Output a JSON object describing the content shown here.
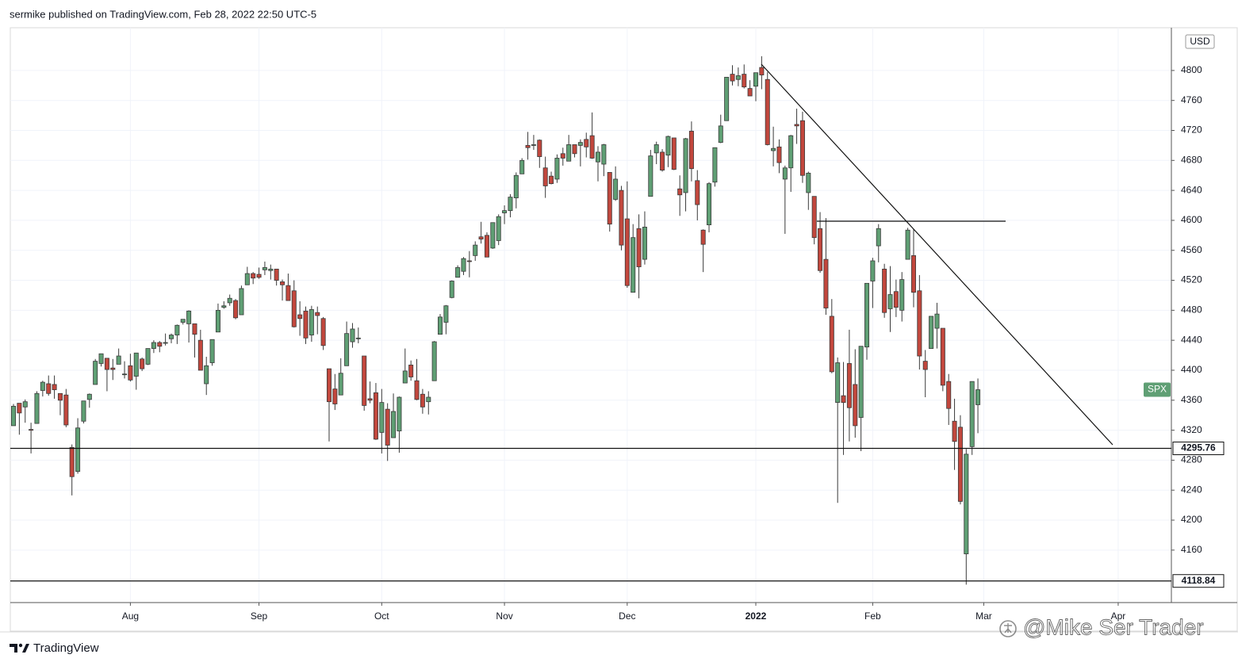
{
  "header": "sermike published on TradingView.com, Feb 28, 2022 22:50 UTC-5",
  "footer_brand": "TradingView",
  "watermark": "@Mike Ser Trader",
  "chart_data": {
    "type": "candlestick",
    "symbol": "SPX",
    "currency": "USD",
    "up_color": "#5f9f74",
    "down_color": "#c2473d",
    "grid": true,
    "ylim": [
      4090,
      4857
    ],
    "yticks": [
      4160,
      4200,
      4240,
      4280,
      4320,
      4360,
      4400,
      4440,
      4480,
      4520,
      4560,
      4600,
      4640,
      4680,
      4720,
      4760,
      4800
    ],
    "levels": [
      4295.76,
      4118.84
    ],
    "categories": [
      null,
      null,
      null,
      null,
      null,
      null,
      null,
      null,
      null,
      null,
      null,
      null,
      null,
      null,
      null,
      null,
      null,
      null,
      null,
      null,
      "Aug",
      null,
      null,
      null,
      null,
      null,
      null,
      null,
      null,
      null,
      null,
      null,
      null,
      null,
      null,
      null,
      null,
      null,
      null,
      null,
      null,
      null,
      "Sep",
      null,
      null,
      null,
      null,
      null,
      null,
      null,
      null,
      null,
      null,
      null,
      null,
      null,
      null,
      null,
      null,
      null,
      null,
      null,
      null,
      "Oct",
      null,
      null,
      null,
      null,
      null,
      null,
      null,
      null,
      null,
      null,
      null,
      null,
      null,
      null,
      null,
      null,
      null,
      null,
      null,
      null,
      "Nov",
      null,
      null,
      null,
      null,
      null,
      null,
      null,
      null,
      null,
      null,
      null,
      null,
      null,
      null,
      null,
      null,
      null,
      null,
      null,
      null,
      "Dec",
      null,
      null,
      null,
      null,
      null,
      null,
      null,
      null,
      null,
      null,
      null,
      null,
      null,
      null,
      null,
      null,
      null,
      null,
      null,
      null,
      null,
      "2022",
      null,
      null,
      null,
      null,
      null,
      null,
      null,
      null,
      null,
      null,
      null,
      null,
      null,
      null,
      null,
      null,
      null,
      null,
      null,
      "Feb",
      null,
      null,
      null,
      null,
      null,
      null,
      null,
      null,
      null,
      null,
      null,
      null,
      null,
      null,
      null,
      null,
      null,
      null,
      "Mar",
      null,
      null,
      null,
      null,
      null,
      null,
      null,
      null,
      null,
      null,
      null,
      null,
      null,
      null,
      null,
      null,
      null,
      null,
      null,
      null,
      null,
      null,
      "Apr"
    ],
    "ohlc": [
      [
        4326,
        4355,
        4326,
        4352
      ],
      [
        4356,
        4356,
        4314,
        4343
      ],
      [
        4351,
        4361,
        4330,
        4358
      ],
      [
        4321,
        4330,
        4289,
        4320
      ],
      [
        4329,
        4372,
        4329,
        4369
      ],
      [
        4373,
        4386,
        4365,
        4384
      ],
      [
        4382,
        4393,
        4366,
        4369
      ],
      [
        4381,
        4393,
        4362,
        4374
      ],
      [
        4369,
        4369,
        4340,
        4360
      ],
      [
        4367,
        4375,
        4324,
        4327
      ],
      [
        4297,
        4301,
        4233,
        4258
      ],
      [
        4265,
        4336,
        4262,
        4323
      ],
      [
        4332,
        4359,
        4329,
        4359
      ],
      [
        4361,
        4369,
        4350,
        4368
      ],
      [
        4381,
        4415,
        4381,
        4412
      ],
      [
        4409,
        4422,
        4405,
        4422
      ],
      [
        4416,
        4416,
        4372,
        4401
      ],
      [
        4403,
        4415,
        4387,
        4401
      ],
      [
        4408,
        4429,
        4408,
        4419
      ],
      [
        4395,
        4412,
        4389,
        4395
      ],
      [
        4406,
        4422,
        4385,
        4387
      ],
      [
        4392,
        4423,
        4374,
        4423
      ],
      [
        4415,
        4417,
        4399,
        4402
      ],
      [
        4408,
        4429,
        4407,
        4429
      ],
      [
        4429,
        4440,
        4423,
        4437
      ],
      [
        4437,
        4439,
        4424,
        4432
      ],
      [
        4436,
        4449,
        4433,
        4437
      ],
      [
        4442,
        4449,
        4436,
        4447
      ],
      [
        4447,
        4461,
        4435,
        4460
      ],
      [
        4464,
        4468,
        4461,
        4468
      ],
      [
        4462,
        4480,
        4437,
        4479
      ],
      [
        4462,
        4462,
        4417,
        4448
      ],
      [
        4440,
        4454,
        4400,
        4400
      ],
      [
        4382,
        4418,
        4367,
        4406
      ],
      [
        4410,
        4441,
        4406,
        4441
      ],
      [
        4451,
        4489,
        4451,
        4480
      ],
      [
        4484,
        4492,
        4482,
        4486
      ],
      [
        4490,
        4501,
        4486,
        4496
      ],
      [
        4493,
        4495,
        4468,
        4470
      ],
      [
        4474,
        4513,
        4474,
        4509
      ],
      [
        4514,
        4538,
        4514,
        4529
      ],
      [
        4529,
        4531,
        4515,
        4523
      ],
      [
        4528,
        4537,
        4522,
        4524
      ],
      [
        4534,
        4545,
        4527,
        4537
      ],
      [
        4533,
        4541,
        4521,
        4535
      ],
      [
        4535,
        4535,
        4513,
        4520
      ],
      [
        4518,
        4521,
        4493,
        4514
      ],
      [
        4513,
        4529,
        4493,
        4493
      ],
      [
        4506,
        4520,
        4457,
        4458
      ],
      [
        4474,
        4492,
        4446,
        4469
      ],
      [
        4479,
        4485,
        4435,
        4443
      ],
      [
        4447,
        4486,
        4438,
        4481
      ],
      [
        4477,
        4485,
        4448,
        4473
      ],
      [
        4469,
        4471,
        4427,
        4433
      ],
      [
        4402,
        4402,
        4305,
        4358
      ],
      [
        4375,
        4395,
        4347,
        4355
      ],
      [
        4367,
        4416,
        4367,
        4396
      ],
      [
        4406,
        4465,
        4406,
        4449
      ],
      [
        4438,
        4463,
        4430,
        4455
      ],
      [
        4442,
        4457,
        4436,
        4443
      ],
      [
        4419,
        4419,
        4346,
        4353
      ],
      [
        4362,
        4385,
        4356,
        4360
      ],
      [
        4370,
        4383,
        4307,
        4308
      ],
      [
        4317,
        4375,
        4289,
        4357
      ],
      [
        4348,
        4356,
        4279,
        4300
      ],
      [
        4310,
        4369,
        4310,
        4345
      ],
      [
        4319,
        4365,
        4290,
        4364
      ],
      [
        4383,
        4429,
        4383,
        4399
      ],
      [
        4407,
        4413,
        4386,
        4391
      ],
      [
        4386,
        4415,
        4360,
        4361
      ],
      [
        4368,
        4375,
        4342,
        4351
      ],
      [
        4358,
        4372,
        4341,
        4364
      ],
      [
        4386,
        4439,
        4386,
        4438
      ],
      [
        4448,
        4475,
        4448,
        4471
      ],
      [
        4464,
        4487,
        4448,
        4486
      ],
      [
        4497,
        4520,
        4496,
        4519
      ],
      [
        4524,
        4540,
        4524,
        4537
      ],
      [
        4532,
        4551,
        4527,
        4549
      ],
      [
        4546,
        4559,
        4524,
        4545
      ],
      [
        4553,
        4572,
        4546,
        4567
      ],
      [
        4578,
        4598,
        4569,
        4575
      ],
      [
        4580,
        4584,
        4551,
        4551
      ],
      [
        4563,
        4597,
        4562,
        4597
      ],
      [
        4573,
        4608,
        4567,
        4605
      ],
      [
        4610,
        4620,
        4595,
        4613
      ],
      [
        4613,
        4635,
        4604,
        4631
      ],
      [
        4630,
        4664,
        4616,
        4660
      ],
      [
        4662,
        4683,
        4662,
        4680
      ],
      [
        4700,
        4718,
        4681,
        4697
      ],
      [
        4701,
        4714,
        4694,
        4701
      ],
      [
        4707,
        4708,
        4670,
        4685
      ],
      [
        4670,
        4685,
        4630,
        4646
      ],
      [
        4659,
        4665,
        4648,
        4649
      ],
      [
        4655,
        4688,
        4650,
        4683
      ],
      [
        4689,
        4697,
        4673,
        4683
      ],
      [
        4679,
        4714,
        4679,
        4701
      ],
      [
        4701,
        4701,
        4684,
        4689
      ],
      [
        4700,
        4708,
        4672,
        4704
      ],
      [
        4708,
        4717,
        4684,
        4698
      ],
      [
        4713,
        4744,
        4682,
        4683
      ],
      [
        4678,
        4699,
        4652,
        4691
      ],
      [
        4675,
        4702,
        4659,
        4701
      ],
      [
        4664,
        4664,
        4585,
        4595
      ],
      [
        4628,
        4672,
        4626,
        4655
      ],
      [
        4640,
        4646,
        4560,
        4567
      ],
      [
        4602,
        4652,
        4510,
        4513
      ],
      [
        4504,
        4595,
        4504,
        4577
      ],
      [
        4589,
        4608,
        4496,
        4538
      ],
      [
        4548,
        4612,
        4541,
        4591
      ],
      [
        4632,
        4694,
        4632,
        4686
      ],
      [
        4690,
        4705,
        4675,
        4701
      ],
      [
        4691,
        4695,
        4665,
        4667
      ],
      [
        4687,
        4713,
        4671,
        4712
      ],
      [
        4710,
        4710,
        4667,
        4668
      ],
      [
        4642,
        4660,
        4606,
        4634
      ],
      [
        4637,
        4710,
        4612,
        4709
      ],
      [
        4719,
        4732,
        4652,
        4669
      ],
      [
        4653,
        4667,
        4600,
        4621
      ],
      [
        4587,
        4588,
        4531,
        4568
      ],
      [
        4594,
        4651,
        4584,
        4649
      ],
      [
        4651,
        4697,
        4645,
        4697
      ],
      [
        4704,
        4741,
        4703,
        4726
      ],
      [
        4733,
        4791,
        4733,
        4791
      ],
      [
        4795,
        4807,
        4780,
        4786
      ],
      [
        4788,
        4804,
        4779,
        4793
      ],
      [
        4795,
        4808,
        4776,
        4778
      ],
      [
        4776,
        4787,
        4766,
        4766
      ],
      [
        4779,
        4797,
        4759,
        4797
      ],
      [
        4804,
        4819,
        4775,
        4794
      ],
      [
        4788,
        4798,
        4700,
        4701
      ],
      [
        4693,
        4725,
        4672,
        4696
      ],
      [
        4698,
        4708,
        4663,
        4677
      ],
      [
        4655,
        4673,
        4582,
        4670
      ],
      [
        4670,
        4714,
        4638,
        4713
      ],
      [
        4728,
        4749,
        4702,
        4726
      ],
      [
        4733,
        4745,
        4650,
        4660
      ],
      [
        4637,
        4665,
        4614,
        4663
      ],
      [
        4632,
        4632,
        4568,
        4577
      ],
      [
        4589,
        4611,
        4530,
        4533
      ],
      [
        4548,
        4603,
        4474,
        4483
      ],
      [
        4472,
        4495,
        4396,
        4398
      ],
      [
        4357,
        4417,
        4223,
        4410
      ],
      [
        4366,
        4411,
        4287,
        4357
      ],
      [
        4409,
        4454,
        4305,
        4350
      ],
      [
        4381,
        4428,
        4310,
        4326
      ],
      [
        4337,
        4432,
        4292,
        4432
      ],
      [
        4431,
        4516,
        4414,
        4516
      ],
      [
        4519,
        4550,
        4483,
        4546
      ],
      [
        4566,
        4595,
        4544,
        4589
      ],
      [
        4535,
        4542,
        4470,
        4477
      ],
      [
        4482,
        4539,
        4451,
        4501
      ],
      [
        4505,
        4521,
        4471,
        4484
      ],
      [
        4480,
        4531,
        4465,
        4521
      ],
      [
        4548,
        4590,
        4548,
        4587
      ],
      [
        4553,
        4588,
        4484,
        4504
      ],
      [
        4506,
        4527,
        4401,
        4419
      ],
      [
        4412,
        4427,
        4364,
        4401
      ],
      [
        4429,
        4472,
        4429,
        4472
      ],
      [
        4456,
        4490,
        4429,
        4475
      ],
      [
        4456,
        4456,
        4372,
        4380
      ],
      [
        4385,
        4395,
        4327,
        4349
      ],
      [
        4332,
        4362,
        4267,
        4305
      ],
      [
        4324,
        4340,
        4221,
        4225
      ],
      [
        4155,
        4295,
        4114,
        4288
      ],
      [
        4298,
        4385,
        4287,
        4385
      ],
      [
        4354,
        4389,
        4316,
        4374
      ],
      null,
      null,
      null,
      null,
      null,
      null,
      null,
      null,
      null,
      null,
      null,
      null,
      null,
      null,
      null,
      null,
      null,
      null,
      null,
      null,
      null,
      null,
      null,
      null
    ]
  }
}
